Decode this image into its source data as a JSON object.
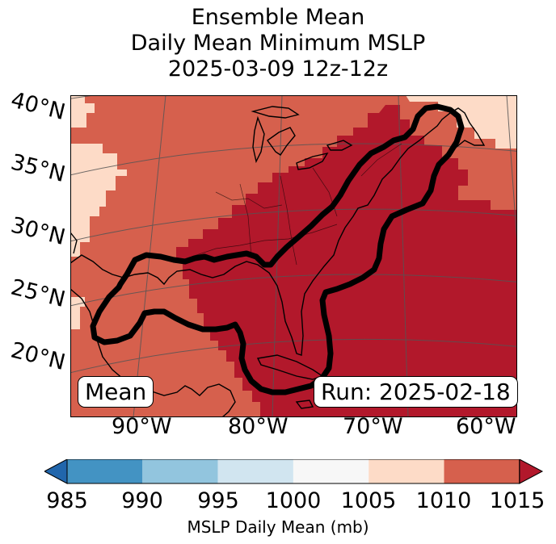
{
  "title": {
    "line1": "Ensemble Mean",
    "line2": "Daily Mean Minimum MSLP",
    "line3": "2025-03-09 12z-12z"
  },
  "map": {
    "lat_labels": [
      "40°N",
      "35°N",
      "30°N",
      "25°N",
      "20°N"
    ],
    "lon_labels": [
      "90°W",
      "80°W",
      "70°W",
      "60°W"
    ],
    "colors": {
      "c1005": "#fddbc7",
      "c1010": "#d6604d",
      "c1015": "#b2182b",
      "contour": "#000000",
      "coast": "#000000",
      "grid": "#555555"
    }
  },
  "annotations": {
    "left": "Mean",
    "right": "Run: 2025-02-18"
  },
  "colorbar": {
    "ticks": [
      "985",
      "990",
      "995",
      "1000",
      "1005",
      "1010",
      "1015"
    ],
    "colors": [
      "#4393c3",
      "#92c5de",
      "#d1e5f0",
      "#f7f7f7",
      "#fddbc7",
      "#d6604d"
    ],
    "under_color": "#2166ac",
    "over_color": "#b2182b",
    "label": "MSLP Daily Mean (mb)"
  }
}
